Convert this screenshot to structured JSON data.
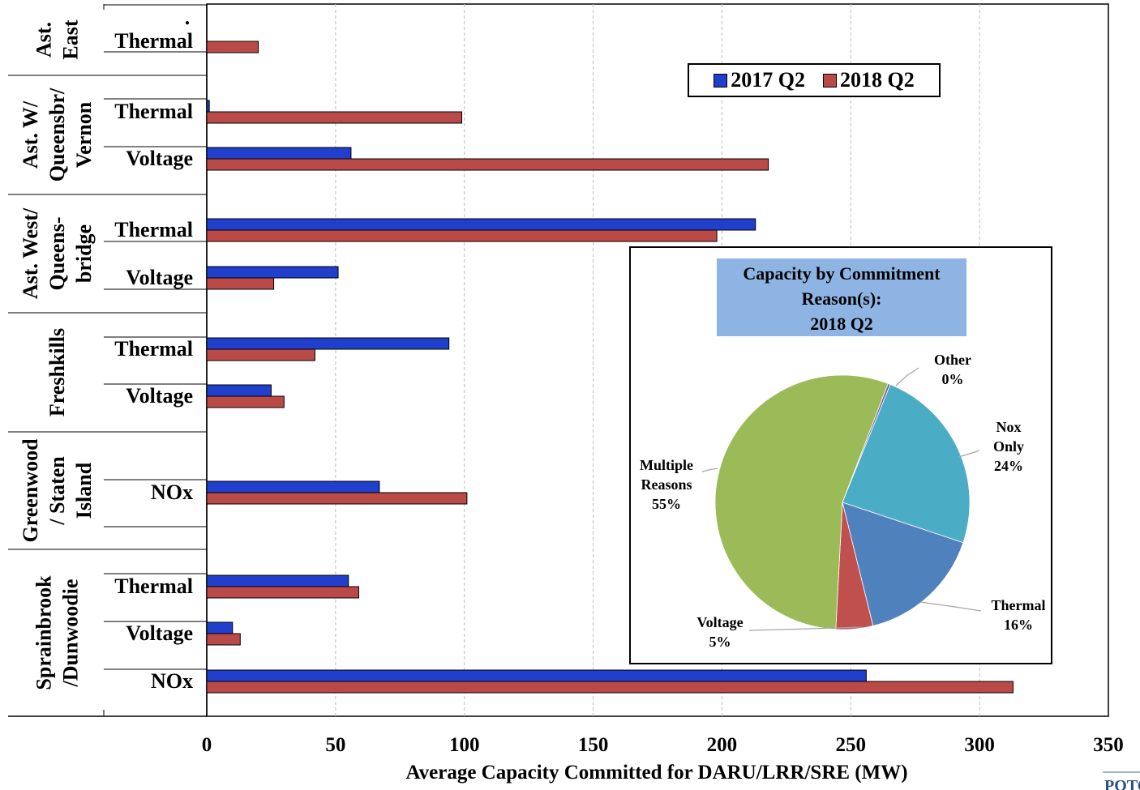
{
  "chart_data": [
    {
      "type": "bar",
      "orientation": "horizontal",
      "groups": [
        {
          "name": "Ast. East",
          "lines": [
            "Ast.",
            "East"
          ],
          "categories": [
            "Thermal"
          ]
        },
        {
          "name": "Ast. W/ Queensbr/ Vernon",
          "lines": [
            "Ast. W/",
            "Queensbr/",
            "Vernon"
          ],
          "categories": [
            "Thermal",
            "Voltage"
          ]
        },
        {
          "name": "Ast. West/ Queens-bridge",
          "lines": [
            "Ast. West/",
            "Queens-",
            "bridge"
          ],
          "categories": [
            "Thermal",
            "Voltage"
          ]
        },
        {
          "name": "Freshkills",
          "lines": [
            "Freshkills"
          ],
          "categories": [
            "Thermal",
            "Voltage"
          ]
        },
        {
          "name": "Greenwood / Staten Island",
          "lines": [
            "Greenwood",
            "/ Staten",
            "Island"
          ],
          "categories": [
            "NOx"
          ]
        },
        {
          "name": "Sprainbrook /Dunwoodie",
          "lines": [
            "Sprainbrook",
            "/Dunwoodie"
          ],
          "categories": [
            "Thermal",
            "Voltage",
            "NOx"
          ]
        }
      ],
      "series": [
        {
          "name": "2017 Q2",
          "color": "#1f3fcc",
          "values": [
            0,
            1,
            56,
            213,
            51,
            94,
            25,
            67,
            55,
            10,
            256
          ]
        },
        {
          "name": "2018 Q2",
          "color": "#b94a48",
          "values": [
            20,
            99,
            218,
            198,
            26,
            42,
            30,
            101,
            59,
            13,
            313
          ]
        }
      ],
      "xlabel": "Average Capacity Committed for DARU/LRR/SRE (MW)",
      "xlim": [
        0,
        350
      ],
      "xticks": [
        "0",
        "50",
        "100",
        "150",
        "200",
        "250",
        "300",
        "350"
      ],
      "grid": "vertical dashed",
      "legend": "top-right"
    },
    {
      "type": "pie",
      "title_lines": [
        "Capacity by Commitment",
        "Reason(s):",
        "2018 Q2"
      ],
      "slices": [
        {
          "label": "Other",
          "pct": "0%",
          "value": 0.3,
          "color": "#7b5ba6"
        },
        {
          "label": "Nox Only",
          "pct": "24%",
          "value": 24,
          "color": "#4bacc6"
        },
        {
          "label": "Thermal",
          "pct": "16%",
          "value": 16,
          "color": "#4f81bd"
        },
        {
          "label": "Voltage",
          "pct": "5%",
          "value": 4.7,
          "color": "#c0504d"
        },
        {
          "label": "Multiple Reasons",
          "pct": "55%",
          "value": 55,
          "color": "#9bbb59"
        }
      ]
    }
  ],
  "corner_logo_text": "POTO"
}
